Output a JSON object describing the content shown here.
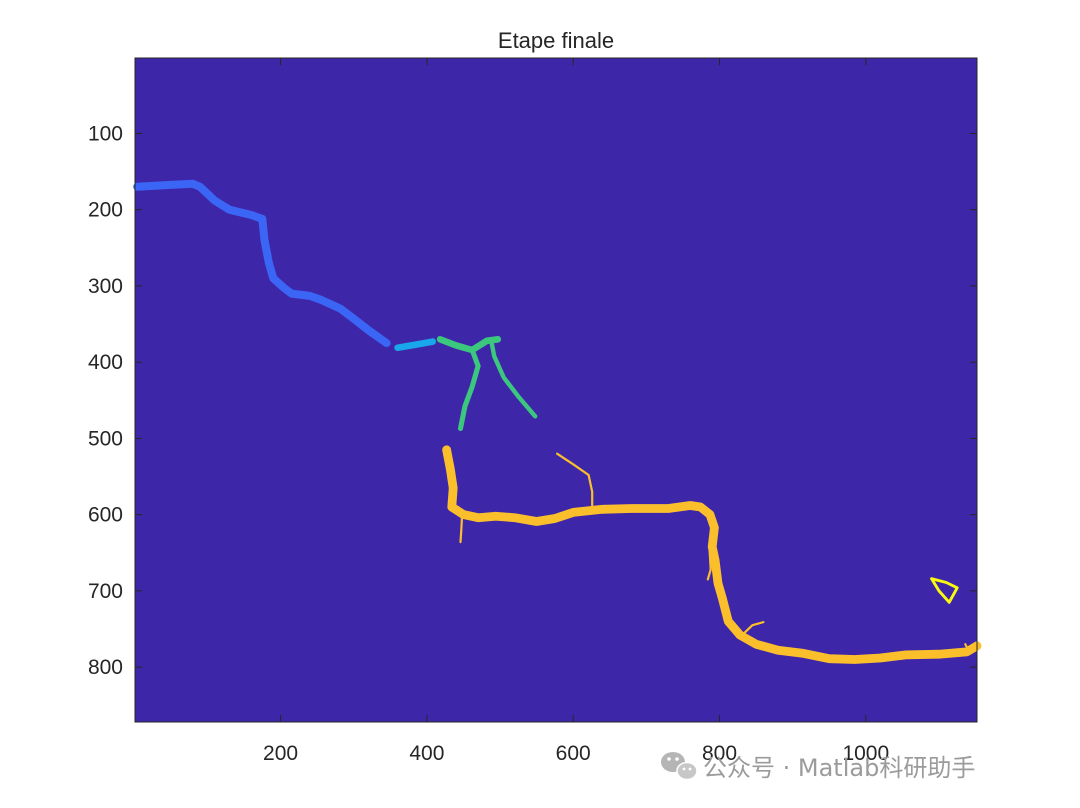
{
  "chart_data": {
    "type": "heatmap",
    "title": "Etape finale",
    "xlabel": "",
    "ylabel": "",
    "xlim": [
      1,
      1152
    ],
    "ylim": [
      1,
      872
    ],
    "y_reversed": true,
    "grid": false,
    "xticks": [
      200,
      400,
      600,
      800,
      1000
    ],
    "yticks": [
      100,
      200,
      300,
      400,
      500,
      600,
      700,
      800
    ],
    "background_color": "#3e26a8",
    "segments": [
      {
        "color": "#3b66f5",
        "width": 11,
        "points": [
          [
            4,
            170
          ],
          [
            40,
            168
          ],
          [
            80,
            166
          ],
          [
            90,
            170
          ],
          [
            110,
            188
          ],
          [
            130,
            200
          ],
          [
            160,
            207
          ],
          [
            175,
            212
          ],
          [
            178,
            240
          ],
          [
            184,
            270
          ],
          [
            190,
            290
          ],
          [
            204,
            302
          ],
          [
            215,
            310
          ],
          [
            240,
            313
          ],
          [
            255,
            318
          ],
          [
            282,
            330
          ],
          [
            300,
            343
          ],
          [
            320,
            358
          ],
          [
            345,
            375
          ]
        ]
      },
      {
        "color": "#1aa6ea",
        "width": 9,
        "points": [
          [
            360,
            381
          ],
          [
            385,
            377
          ],
          [
            408,
            373
          ]
        ]
      },
      {
        "color": "#3cc77e",
        "width": 9,
        "points": [
          [
            418,
            370
          ],
          [
            440,
            378
          ],
          [
            462,
            384
          ],
          [
            482,
            372
          ],
          [
            497,
            370
          ]
        ]
      },
      {
        "color": "#3cc77e",
        "width": 7,
        "points": [
          [
            462,
            384
          ],
          [
            470,
            405
          ],
          [
            462,
            432
          ],
          [
            452,
            458
          ],
          [
            446,
            487
          ]
        ]
      },
      {
        "color": "#3cc77e",
        "width": 6,
        "points": [
          [
            488,
            372
          ],
          [
            492,
            392
          ],
          [
            505,
            420
          ],
          [
            525,
            445
          ],
          [
            548,
            471
          ]
        ]
      },
      {
        "color": "#fbbf2c",
        "width": 12,
        "points": [
          [
            427,
            515
          ],
          [
            432,
            540
          ],
          [
            436,
            565
          ],
          [
            434,
            590
          ],
          [
            450,
            600
          ],
          [
            470,
            604
          ],
          [
            494,
            602
          ],
          [
            520,
            604
          ],
          [
            550,
            609
          ],
          [
            575,
            605
          ],
          [
            600,
            597
          ],
          [
            640,
            593
          ],
          [
            680,
            592
          ],
          [
            730,
            592
          ],
          [
            760,
            588
          ],
          [
            774,
            590
          ],
          [
            787,
            600
          ],
          [
            793,
            617
          ],
          [
            790,
            642
          ],
          [
            794,
            660
          ],
          [
            798,
            690
          ],
          [
            804,
            710
          ],
          [
            812,
            740
          ],
          [
            828,
            758
          ],
          [
            850,
            770
          ],
          [
            880,
            778
          ],
          [
            915,
            782
          ],
          [
            950,
            789
          ],
          [
            985,
            790
          ],
          [
            1020,
            788
          ],
          [
            1055,
            784
          ],
          [
            1100,
            783
          ],
          [
            1138,
            780
          ],
          [
            1152,
            772
          ]
        ]
      },
      {
        "color": "#fbbf2c",
        "width": 3,
        "points": [
          [
            578,
            520
          ],
          [
            600,
            534
          ],
          [
            621,
            548
          ],
          [
            626,
            570
          ],
          [
            626,
            588
          ]
        ]
      },
      {
        "color": "#fbbf2c",
        "width": 3,
        "points": [
          [
            448,
            603
          ],
          [
            447,
            620
          ],
          [
            446,
            636
          ]
        ]
      },
      {
        "color": "#fbbf2c",
        "width": 3,
        "points": [
          [
            832,
            757
          ],
          [
            845,
            745
          ],
          [
            860,
            741
          ]
        ]
      },
      {
        "color": "#fbbf2c",
        "width": 3,
        "points": [
          [
            786,
            640
          ],
          [
            788,
            672
          ],
          [
            784,
            685
          ]
        ]
      },
      {
        "color": "#fbbf2c",
        "width": 3,
        "points": [
          [
            1136,
            770
          ],
          [
            1142,
            782
          ]
        ]
      },
      {
        "color": "#f9fb0e",
        "width": 4,
        "points": [
          [
            1090,
            684
          ],
          [
            1110,
            689
          ],
          [
            1125,
            696
          ],
          [
            1114,
            715
          ],
          [
            1100,
            700
          ],
          [
            1090,
            684
          ]
        ]
      }
    ]
  },
  "watermark": {
    "icon": "wechat-icon",
    "text": "公众号 · Matlab科研助手"
  }
}
